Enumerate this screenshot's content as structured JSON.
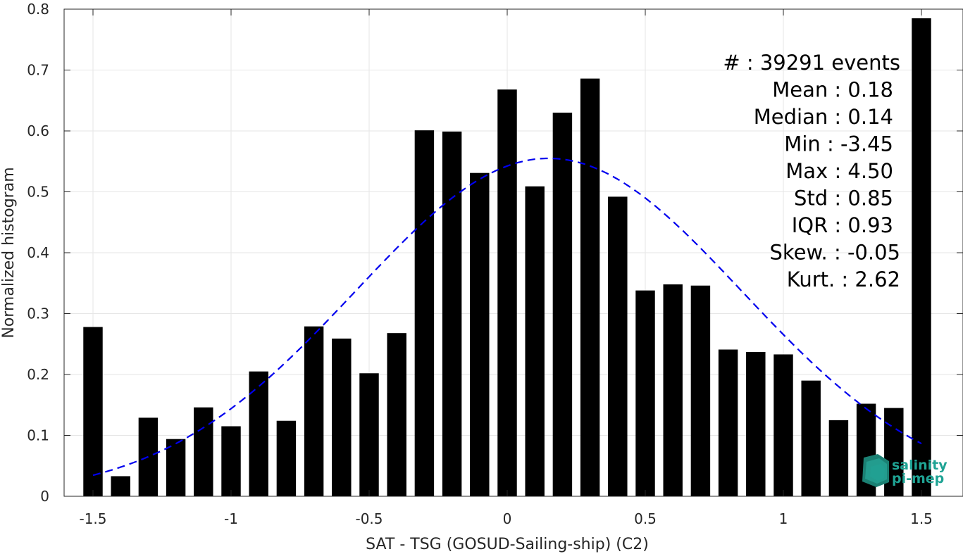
{
  "chart_data": {
    "type": "bar",
    "xlabel": "SAT - TSG (GOSUD-Sailing-ship) (C2)",
    "ylabel": "Normalized histogram",
    "xlim": [
      -1.55,
      1.55
    ],
    "ylim": [
      0,
      0.8
    ],
    "grid": true,
    "xticks": [
      -1.5,
      -1,
      -0.5,
      0,
      0.5,
      1,
      1.5
    ],
    "xtick_labels": [
      "-1.5",
      "-1",
      "-0.5",
      "0",
      "0.5",
      "1",
      "1.5"
    ],
    "yticks": [
      0,
      0.1,
      0.2,
      0.3,
      0.4,
      0.5,
      0.6,
      0.7,
      0.8
    ],
    "ytick_labels": [
      "0",
      "0.1",
      "0.2",
      "0.3",
      "0.4",
      "0.5",
      "0.6",
      "0.7",
      "0.8"
    ],
    "bar_color": "#000000",
    "bar_width": 0.07,
    "x": [
      -1.5,
      -1.4,
      -1.3,
      -1.2,
      -1.1,
      -1.0,
      -0.9,
      -0.8,
      -0.7,
      -0.6,
      -0.5,
      -0.4,
      -0.3,
      -0.2,
      -0.1,
      0.0,
      0.1,
      0.2,
      0.3,
      0.4,
      0.5,
      0.6,
      0.7,
      0.8,
      0.9,
      1.0,
      1.1,
      1.2,
      1.3,
      1.4,
      1.5
    ],
    "values": [
      0.278,
      0.033,
      0.129,
      0.094,
      0.146,
      0.115,
      0.205,
      0.124,
      0.279,
      0.259,
      0.202,
      0.268,
      0.601,
      0.599,
      0.531,
      0.668,
      0.509,
      0.63,
      0.686,
      0.492,
      0.338,
      0.348,
      0.346,
      0.241,
      0.237,
      0.233,
      0.19,
      0.125,
      0.152,
      0.145,
      0.785
    ],
    "fit_curve": {
      "type": "gaussian",
      "mean": 0.15,
      "std": 0.7,
      "peak": 0.555,
      "x_range": [
        -1.5,
        1.5
      ],
      "color": "#0000ee",
      "style": "dashed"
    },
    "stats": [
      {
        "label": "#  ",
        "value": "39291 events"
      },
      {
        "label": "Mean",
        "value": "0.18"
      },
      {
        "label": "Median",
        "value": "0.14"
      },
      {
        "label": "Min",
        "value": "-3.45"
      },
      {
        "label": "Max",
        "value": "4.50"
      },
      {
        "label": "Std",
        "value": "0.85"
      },
      {
        "label": "IQR",
        "value": "0.93"
      },
      {
        "label": "Skew.",
        "value": "-0.05"
      },
      {
        "label": "Kurt.",
        "value": "2.62"
      }
    ],
    "stats_placement": "top-right"
  },
  "logo": {
    "line1": "salinity",
    "line2": "pi-mep",
    "color": "#1fa394"
  }
}
